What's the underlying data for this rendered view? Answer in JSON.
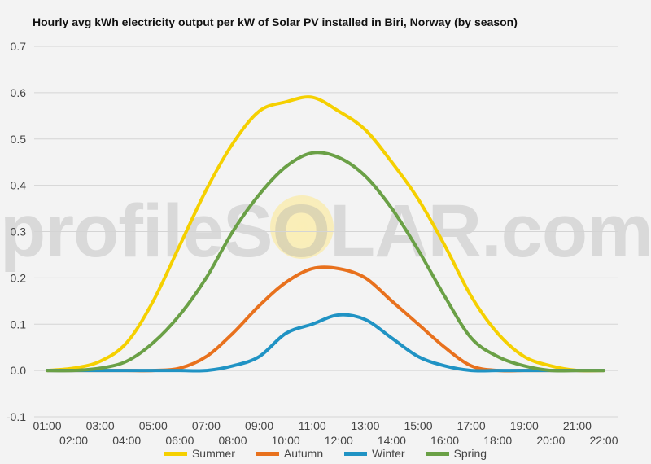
{
  "chart_data": {
    "type": "line",
    "title": "Hourly avg kWh electricity output per kW of Solar PV installed in Biri, Norway (by season)",
    "x": [
      "01:00",
      "02:00",
      "03:00",
      "04:00",
      "05:00",
      "06:00",
      "07:00",
      "08:00",
      "09:00",
      "10:00",
      "11:00",
      "12:00",
      "13:00",
      "14:00",
      "15:00",
      "16:00",
      "17:00",
      "18:00",
      "19:00",
      "20:00",
      "21:00",
      "22:00"
    ],
    "xticks_top": [
      "01:00",
      "03:00",
      "05:00",
      "07:00",
      "09:00",
      "11:00",
      "13:00",
      "15:00",
      "17:00",
      "19:00",
      "21:00"
    ],
    "xticks_bottom": [
      "02:00",
      "04:00",
      "06:00",
      "08:00",
      "10:00",
      "12:00",
      "14:00",
      "16:00",
      "18:00",
      "20:00",
      "22:00"
    ],
    "yticks": [
      "0.7",
      "0.6",
      "0.5",
      "0.4",
      "0.3",
      "0.2",
      "0.1",
      "0.0",
      "-0.1"
    ],
    "ylim": [
      -0.1,
      0.7
    ],
    "grid": true,
    "legend_position": "bottom",
    "series": [
      {
        "name": "Summer",
        "color": "#f5d000",
        "values": [
          0.0,
          0.005,
          0.02,
          0.06,
          0.15,
          0.27,
          0.39,
          0.49,
          0.56,
          0.58,
          0.59,
          0.56,
          0.52,
          0.45,
          0.37,
          0.27,
          0.16,
          0.08,
          0.03,
          0.01,
          0.0,
          0.0
        ]
      },
      {
        "name": "Autumn",
        "color": "#e8711d",
        "values": [
          0.0,
          0.0,
          0.0,
          0.0,
          0.0,
          0.005,
          0.03,
          0.08,
          0.14,
          0.19,
          0.22,
          0.22,
          0.2,
          0.15,
          0.1,
          0.05,
          0.01,
          0.0,
          0.0,
          0.0,
          0.0,
          0.0
        ]
      },
      {
        "name": "Winter",
        "color": "#2093c4",
        "values": [
          0.0,
          0.0,
          0.0,
          0.0,
          0.0,
          0.0,
          0.0,
          0.01,
          0.03,
          0.08,
          0.1,
          0.12,
          0.11,
          0.07,
          0.03,
          0.01,
          0.0,
          0.0,
          0.0,
          0.0,
          0.0,
          0.0
        ]
      },
      {
        "name": "Spring",
        "color": "#6aa046",
        "values": [
          0.0,
          0.0,
          0.005,
          0.02,
          0.06,
          0.12,
          0.2,
          0.3,
          0.38,
          0.44,
          0.47,
          0.46,
          0.42,
          0.35,
          0.26,
          0.16,
          0.07,
          0.03,
          0.01,
          0.0,
          0.0,
          0.0
        ]
      }
    ]
  },
  "watermark": "profileSOLAR.com"
}
